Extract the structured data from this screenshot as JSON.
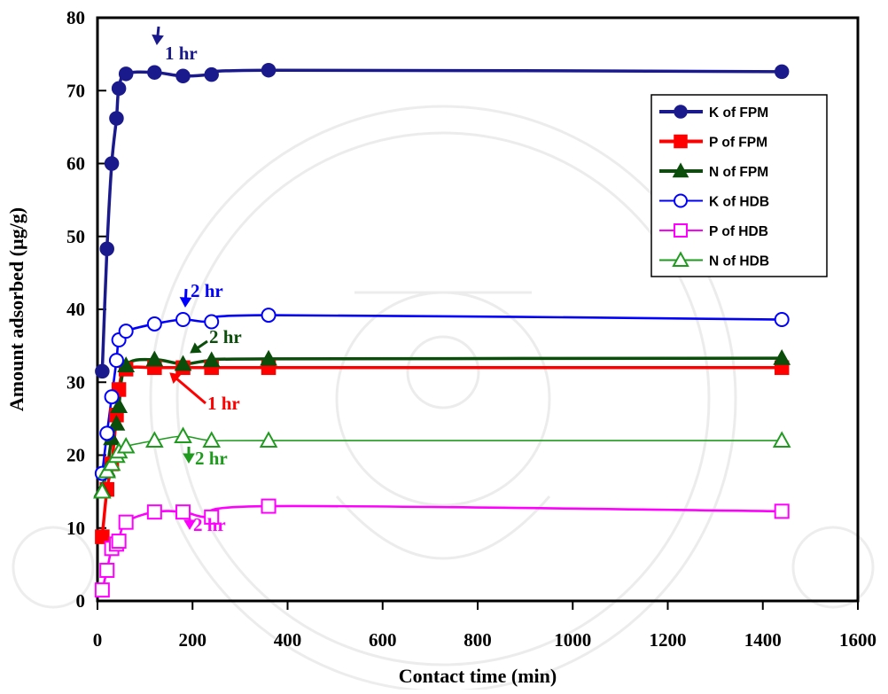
{
  "chart_data": {
    "type": "line",
    "xlabel": "Contact time (min)",
    "ylabel": "Amount adsorbed (µg/g)",
    "xlim": [
      0,
      1600
    ],
    "ylim": [
      0,
      80
    ],
    "xticks": [
      "0",
      "200",
      "400",
      "600",
      "800",
      "1000",
      "1200",
      "1400",
      "1600"
    ],
    "yticks": [
      "0",
      "10",
      "20",
      "30",
      "40",
      "50",
      "60",
      "70",
      "80"
    ],
    "grid": false,
    "legend_position": "top-right",
    "series": [
      {
        "name": "K of FPM",
        "color": "#1a1a8c",
        "marker": "circle",
        "filled": true,
        "x": [
          10,
          20,
          30,
          40,
          45,
          60,
          120,
          180,
          240,
          360,
          1440
        ],
        "y": [
          31.5,
          48.3,
          60,
          66.2,
          70.3,
          72.3,
          72.5,
          72.0,
          72.2,
          72.8,
          72.6
        ]
      },
      {
        "name": "P of FPM",
        "color": "#ff0000",
        "marker": "square",
        "filled": true,
        "x": [
          10,
          20,
          30,
          40,
          45,
          60,
          120,
          180,
          240,
          360,
          1440
        ],
        "y": [
          8.8,
          15.3,
          18.8,
          25.5,
          29,
          31.8,
          32,
          32,
          32,
          32,
          32
        ]
      },
      {
        "name": "N of FPM",
        "color": "#0b4d0b",
        "marker": "triangle",
        "filled": true,
        "x": [
          10,
          20,
          30,
          40,
          45,
          60,
          120,
          180,
          240,
          360,
          1440
        ],
        "y": [
          15.2,
          18,
          22.3,
          24.3,
          26.7,
          32.3,
          33.1,
          32.5,
          33,
          33.2,
          33.3
        ]
      },
      {
        "name": "K of HDB",
        "color": "#0000ff",
        "marker": "circle",
        "filled": false,
        "x": [
          10,
          20,
          30,
          40,
          45,
          60,
          120,
          180,
          240,
          360,
          1440
        ],
        "y": [
          17.5,
          23,
          28,
          33,
          35.8,
          37,
          38,
          38.6,
          38.3,
          39.2,
          38.6
        ]
      },
      {
        "name": "P of HDB",
        "color": "#ff00ff",
        "marker": "square",
        "filled": false,
        "x": [
          10,
          20,
          30,
          40,
          45,
          60,
          120,
          180,
          240,
          360,
          1440
        ],
        "y": [
          1.5,
          4.2,
          7.2,
          7.8,
          8.2,
          10.8,
          12.2,
          12.2,
          11.5,
          13,
          12.3
        ]
      },
      {
        "name": "N of HDB",
        "color": "#1f9a1f",
        "marker": "triangle",
        "filled": false,
        "x": [
          10,
          20,
          30,
          40,
          45,
          60,
          120,
          180,
          240,
          360,
          1440
        ],
        "y": [
          15,
          17.8,
          18.8,
          19.9,
          20.5,
          21.2,
          22,
          22.6,
          22,
          22,
          22
        ]
      }
    ],
    "annotations": [
      {
        "text": "1 hr",
        "color": "#1a1a8c"
      },
      {
        "text": "2 hr",
        "color": "#0000ff"
      },
      {
        "text": "2 hr",
        "color": "#0b4d0b"
      },
      {
        "text": "1 hr",
        "color": "#ff0000"
      },
      {
        "text": "2 hr",
        "color": "#1f9a1f"
      },
      {
        "text": "2 hr",
        "color": "#ff00ff"
      }
    ]
  }
}
